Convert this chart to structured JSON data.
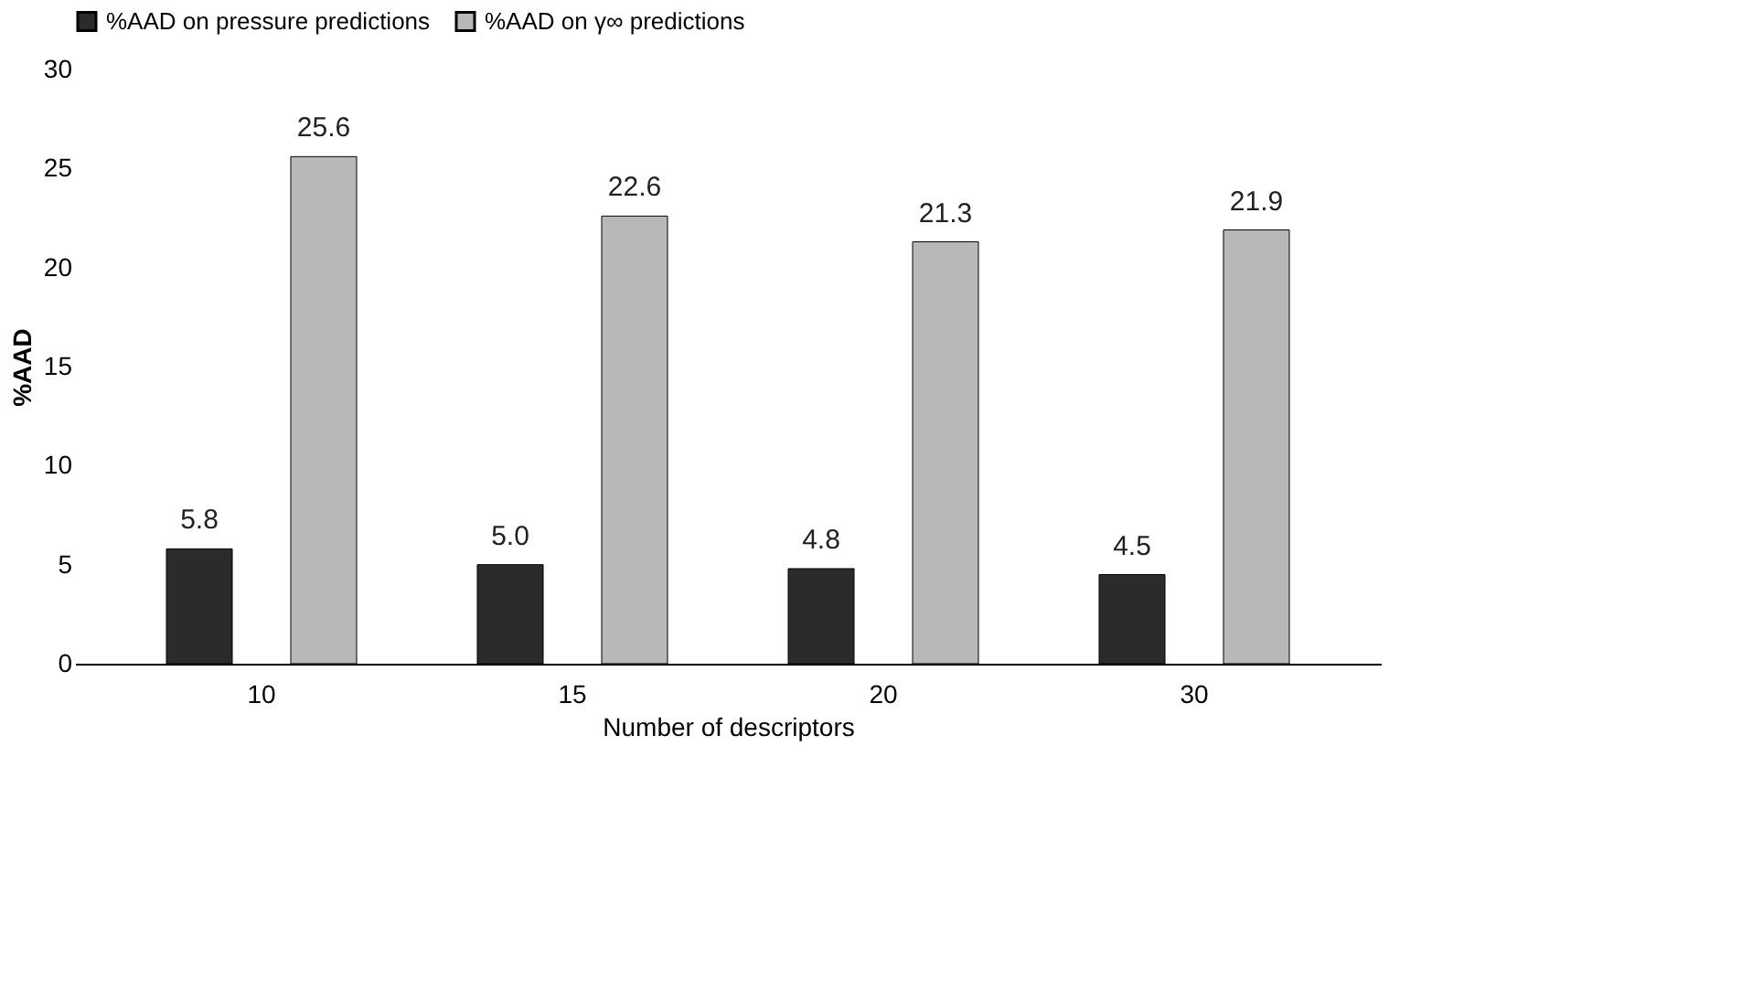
{
  "chart_data": {
    "type": "bar",
    "xlabel": "Number of descriptors",
    "ylabel": "%AAD",
    "categories": [
      "10",
      "15",
      "20",
      "30"
    ],
    "series": [
      {
        "name": "%AAD on pressure predictions",
        "color": "#2b2b2b",
        "values": [
          5.8,
          5.0,
          4.8,
          4.5
        ],
        "value_labels": [
          "5.8",
          "5.0",
          "4.8",
          "4.5"
        ]
      },
      {
        "name": "%AAD on γ∞ predictions",
        "color": "#b8b8b8",
        "values": [
          25.6,
          22.6,
          21.3,
          21.9
        ],
        "value_labels": [
          "25.6",
          "22.6",
          "21.3",
          "21.9"
        ]
      }
    ],
    "ylim": [
      0,
      30
    ],
    "yticks": [
      0,
      5,
      10,
      15,
      20,
      25,
      30
    ],
    "grid": false,
    "legend": "top"
  }
}
